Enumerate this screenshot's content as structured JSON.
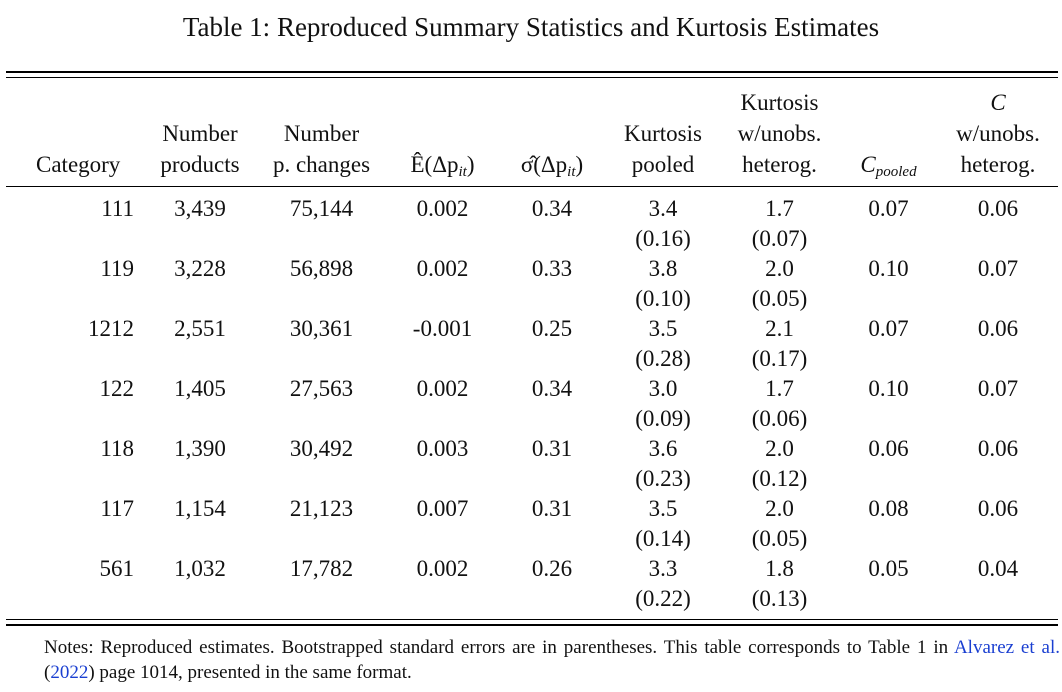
{
  "caption": "Table 1: Reproduced Summary Statistics and Kurtosis Estimates",
  "columns": {
    "category": [
      "Category"
    ],
    "num_products": [
      "Number",
      "products"
    ],
    "num_changes": [
      "Number",
      "p. changes"
    ],
    "mean": [
      "Ê(Δp",
      "it",
      ")"
    ],
    "sd": [
      "σ̂(Δp",
      "it",
      ")"
    ],
    "kurt_pooled": [
      "Kurtosis",
      "pooled"
    ],
    "kurt_unobs": [
      "Kurtosis",
      "w/unobs.",
      "heterog."
    ],
    "c_pooled": [
      "C",
      "pooled"
    ],
    "c_unobs": [
      "C",
      "w/unobs.",
      "heterog."
    ]
  },
  "rows": [
    {
      "category": "111",
      "num_products": "3,439",
      "num_changes": "75,144",
      "mean": "0.002",
      "sd": "0.34",
      "kurt_pooled": "3.4",
      "kurt_pooled_se": "(0.16)",
      "kurt_unobs": "1.7",
      "kurt_unobs_se": "(0.07)",
      "c_pooled": "0.07",
      "c_unobs": "0.06"
    },
    {
      "category": "119",
      "num_products": "3,228",
      "num_changes": "56,898",
      "mean": "0.002",
      "sd": "0.33",
      "kurt_pooled": "3.8",
      "kurt_pooled_se": "(0.10)",
      "kurt_unobs": "2.0",
      "kurt_unobs_se": "(0.05)",
      "c_pooled": "0.10",
      "c_unobs": "0.07"
    },
    {
      "category": "1212",
      "num_products": "2,551",
      "num_changes": "30,361",
      "mean": "-0.001",
      "sd": "0.25",
      "kurt_pooled": "3.5",
      "kurt_pooled_se": "(0.28)",
      "kurt_unobs": "2.1",
      "kurt_unobs_se": "(0.17)",
      "c_pooled": "0.07",
      "c_unobs": "0.06"
    },
    {
      "category": "122",
      "num_products": "1,405",
      "num_changes": "27,563",
      "mean": "0.002",
      "sd": "0.34",
      "kurt_pooled": "3.0",
      "kurt_pooled_se": "(0.09)",
      "kurt_unobs": "1.7",
      "kurt_unobs_se": "(0.06)",
      "c_pooled": "0.10",
      "c_unobs": "0.07"
    },
    {
      "category": "118",
      "num_products": "1,390",
      "num_changes": "30,492",
      "mean": "0.003",
      "sd": "0.31",
      "kurt_pooled": "3.6",
      "kurt_pooled_se": "(0.23)",
      "kurt_unobs": "2.0",
      "kurt_unobs_se": "(0.12)",
      "c_pooled": "0.06",
      "c_unobs": "0.06"
    },
    {
      "category": "117",
      "num_products": "1,154",
      "num_changes": "21,123",
      "mean": "0.007",
      "sd": "0.31",
      "kurt_pooled": "3.5",
      "kurt_pooled_se": "(0.14)",
      "kurt_unobs": "2.0",
      "kurt_unobs_se": "(0.05)",
      "c_pooled": "0.08",
      "c_unobs": "0.06"
    },
    {
      "category": "561",
      "num_products": "1,032",
      "num_changes": "17,782",
      "mean": "0.002",
      "sd": "0.26",
      "kurt_pooled": "3.3",
      "kurt_pooled_se": "(0.22)",
      "kurt_unobs": "1.8",
      "kurt_unobs_se": "(0.13)",
      "c_pooled": "0.05",
      "c_unobs": "0.04"
    }
  ],
  "notes": {
    "text_before": "Notes: Reproduced estimates. Bootstrapped standard errors are in parentheses. This table corresponds to Table 1 in ",
    "link_author": "Alvarez et al.",
    "open_paren": " (",
    "link_year": "2022",
    "text_after": ") page 1014, presented in the same format."
  }
}
